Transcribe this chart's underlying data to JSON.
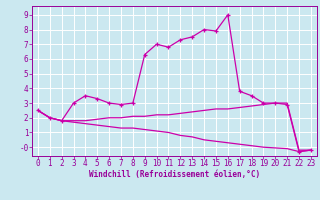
{
  "xlabel": "Windchill (Refroidissement éolien,°C)",
  "background_color": "#cbe8f0",
  "grid_color": "#ffffff",
  "line_color": "#cc00aa",
  "xlim": [
    -0.5,
    23.5
  ],
  "ylim": [
    -0.6,
    9.6
  ],
  "x_ticks": [
    0,
    1,
    2,
    3,
    4,
    5,
    6,
    7,
    8,
    9,
    10,
    11,
    12,
    13,
    14,
    15,
    16,
    17,
    18,
    19,
    20,
    21,
    22,
    23
  ],
  "y_ticks": [
    0,
    1,
    2,
    3,
    4,
    5,
    6,
    7,
    8,
    9
  ],
  "line1_x": [
    0,
    1,
    2,
    3,
    4,
    5,
    6,
    7,
    8,
    9,
    10,
    11,
    12,
    13,
    14,
    15,
    16,
    17,
    18,
    19,
    20,
    21,
    22,
    23
  ],
  "line1_y": [
    2.5,
    2.0,
    1.8,
    3.0,
    3.5,
    3.3,
    3.0,
    2.9,
    3.0,
    6.3,
    7.0,
    6.8,
    7.3,
    7.5,
    8.0,
    7.9,
    9.0,
    3.8,
    3.5,
    3.0,
    3.0,
    2.9,
    -0.3,
    -0.2
  ],
  "line2_x": [
    0,
    1,
    2,
    3,
    4,
    5,
    6,
    7,
    8,
    9,
    10,
    11,
    12,
    13,
    14,
    15,
    16,
    17,
    18,
    19,
    20,
    21,
    22,
    23
  ],
  "line2_y": [
    2.5,
    2.0,
    1.8,
    1.8,
    1.8,
    1.9,
    2.0,
    2.0,
    2.1,
    2.1,
    2.2,
    2.2,
    2.3,
    2.4,
    2.5,
    2.6,
    2.6,
    2.7,
    2.8,
    2.9,
    3.0,
    3.0,
    -0.2,
    -0.2
  ],
  "line3_x": [
    0,
    1,
    2,
    3,
    4,
    5,
    6,
    7,
    8,
    9,
    10,
    11,
    12,
    13,
    14,
    15,
    16,
    17,
    18,
    19,
    20,
    21,
    22,
    23
  ],
  "line3_y": [
    2.5,
    2.0,
    1.8,
    1.7,
    1.6,
    1.5,
    1.4,
    1.3,
    1.3,
    1.2,
    1.1,
    1.0,
    0.8,
    0.7,
    0.5,
    0.4,
    0.3,
    0.2,
    0.1,
    0.0,
    -0.05,
    -0.1,
    -0.3,
    -0.2
  ],
  "tick_fontsize": 5.5,
  "xlabel_fontsize": 5.5,
  "tick_color": "#990099",
  "spine_color": "#990099"
}
